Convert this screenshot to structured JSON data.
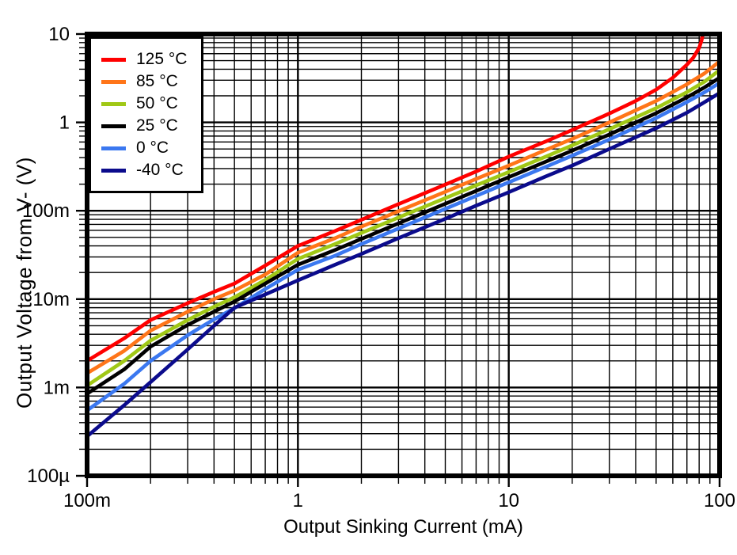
{
  "chart_data": {
    "type": "line",
    "title": "",
    "xlabel": "Output Sinking Current (mA)",
    "ylabel": "Output Voltage from V- (V)",
    "x_scale": "log",
    "y_scale": "log",
    "xlim": [
      0.1,
      100
    ],
    "ylim": [
      0.0001,
      10
    ],
    "grid": "major and minor log gridlines on",
    "legend_position": "top-left",
    "x_ticks": [
      {
        "value": 0.1,
        "label": "100m"
      },
      {
        "value": 1,
        "label": "1"
      },
      {
        "value": 10,
        "label": "10"
      },
      {
        "value": 100,
        "label": "100"
      }
    ],
    "y_ticks": [
      {
        "value": 10,
        "label": "10"
      },
      {
        "value": 1,
        "label": "1"
      },
      {
        "value": 0.1,
        "label": "100m"
      },
      {
        "value": 0.01,
        "label": "10m"
      },
      {
        "value": 0.001,
        "label": "1m"
      },
      {
        "value": 0.0001,
        "label": "100µ"
      }
    ],
    "series": [
      {
        "label": "125 °C",
        "color": "#FF0000",
        "points": [
          [
            0.1,
            0.002
          ],
          [
            0.15,
            0.0036
          ],
          [
            0.2,
            0.0058
          ],
          [
            0.3,
            0.009
          ],
          [
            0.4,
            0.0121
          ],
          [
            0.5,
            0.015
          ],
          [
            0.7,
            0.024
          ],
          [
            1,
            0.04
          ],
          [
            1.5,
            0.059
          ],
          [
            2,
            0.079
          ],
          [
            3,
            0.119
          ],
          [
            5,
            0.198
          ],
          [
            7,
            0.278
          ],
          [
            10,
            0.41
          ],
          [
            15,
            0.61
          ],
          [
            20,
            0.82
          ],
          [
            30,
            1.26
          ],
          [
            40,
            1.75
          ],
          [
            50,
            2.35
          ],
          [
            60,
            3.2
          ],
          [
            70,
            4.5
          ],
          [
            75,
            5.4
          ],
          [
            80,
            7.0
          ],
          [
            82,
            8.3
          ],
          [
            83.5,
            10
          ]
        ]
      },
      {
        "label": "85 °C",
        "color": "#FF7519",
        "points": [
          [
            0.1,
            0.00145
          ],
          [
            0.15,
            0.0026
          ],
          [
            0.2,
            0.0044
          ],
          [
            0.3,
            0.0072
          ],
          [
            0.4,
            0.01
          ],
          [
            0.5,
            0.0125
          ],
          [
            0.7,
            0.019
          ],
          [
            1,
            0.0335
          ],
          [
            1.5,
            0.049
          ],
          [
            2,
            0.066
          ],
          [
            3,
            0.099
          ],
          [
            5,
            0.164
          ],
          [
            7,
            0.229
          ],
          [
            10,
            0.325
          ],
          [
            15,
            0.49
          ],
          [
            20,
            0.65
          ],
          [
            30,
            1.0
          ],
          [
            50,
            1.75
          ],
          [
            70,
            2.7
          ],
          [
            85,
            3.6
          ],
          [
            100,
            4.9
          ]
        ]
      },
      {
        "label": "50 °C",
        "color": "#A0C816",
        "points": [
          [
            0.1,
            0.00105
          ],
          [
            0.15,
            0.002
          ],
          [
            0.2,
            0.0034
          ],
          [
            0.3,
            0.0058
          ],
          [
            0.4,
            0.0082
          ],
          [
            0.5,
            0.0105
          ],
          [
            0.7,
            0.0165
          ],
          [
            1,
            0.0285
          ],
          [
            1.5,
            0.042
          ],
          [
            2,
            0.056
          ],
          [
            3,
            0.084
          ],
          [
            5,
            0.139
          ],
          [
            7,
            0.194
          ],
          [
            10,
            0.275
          ],
          [
            15,
            0.41
          ],
          [
            20,
            0.55
          ],
          [
            30,
            0.84
          ],
          [
            50,
            1.45
          ],
          [
            70,
            2.2
          ],
          [
            85,
            2.9
          ],
          [
            100,
            3.9
          ]
        ]
      },
      {
        "label": "25 °C",
        "color": "#000000",
        "points": [
          [
            0.1,
            0.00085
          ],
          [
            0.15,
            0.0016
          ],
          [
            0.2,
            0.0029
          ],
          [
            0.3,
            0.0051
          ],
          [
            0.4,
            0.0072
          ],
          [
            0.5,
            0.0094
          ],
          [
            0.7,
            0.015
          ],
          [
            1,
            0.0245
          ],
          [
            1.5,
            0.036
          ],
          [
            2,
            0.048
          ],
          [
            3,
            0.072
          ],
          [
            5,
            0.12
          ],
          [
            7,
            0.168
          ],
          [
            10,
            0.24
          ],
          [
            15,
            0.36
          ],
          [
            20,
            0.48
          ],
          [
            30,
            0.73
          ],
          [
            50,
            1.27
          ],
          [
            70,
            1.92
          ],
          [
            85,
            2.5
          ],
          [
            100,
            3.2
          ]
        ]
      },
      {
        "label": "0 °C",
        "color": "#3B78F0",
        "points": [
          [
            0.1,
            0.00055
          ],
          [
            0.15,
            0.0011
          ],
          [
            0.2,
            0.002
          ],
          [
            0.3,
            0.0039
          ],
          [
            0.4,
            0.0059
          ],
          [
            0.5,
            0.0079
          ],
          [
            0.7,
            0.013
          ],
          [
            1,
            0.0215
          ],
          [
            1.5,
            0.031
          ],
          [
            2,
            0.042
          ],
          [
            3,
            0.063
          ],
          [
            5,
            0.105
          ],
          [
            7,
            0.147
          ],
          [
            10,
            0.21
          ],
          [
            15,
            0.315
          ],
          [
            20,
            0.42
          ],
          [
            30,
            0.64
          ],
          [
            50,
            1.12
          ],
          [
            70,
            1.7
          ],
          [
            85,
            2.2
          ],
          [
            100,
            2.8
          ]
        ]
      },
      {
        "label": "-40 °C",
        "color": "#0B0B8C",
        "points": [
          [
            0.1,
            0.00028
          ],
          [
            0.15,
            0.00063
          ],
          [
            0.2,
            0.00115
          ],
          [
            0.3,
            0.0027
          ],
          [
            0.4,
            0.005
          ],
          [
            0.5,
            0.008
          ],
          [
            0.7,
            0.0113
          ],
          [
            1,
            0.0163
          ],
          [
            1.5,
            0.0245
          ],
          [
            2,
            0.0325
          ],
          [
            3,
            0.049
          ],
          [
            5,
            0.081
          ],
          [
            7,
            0.114
          ],
          [
            10,
            0.162
          ],
          [
            15,
            0.245
          ],
          [
            20,
            0.325
          ],
          [
            30,
            0.5
          ],
          [
            50,
            0.86
          ],
          [
            70,
            1.29
          ],
          [
            85,
            1.7
          ],
          [
            100,
            2.15
          ]
        ]
      }
    ]
  }
}
